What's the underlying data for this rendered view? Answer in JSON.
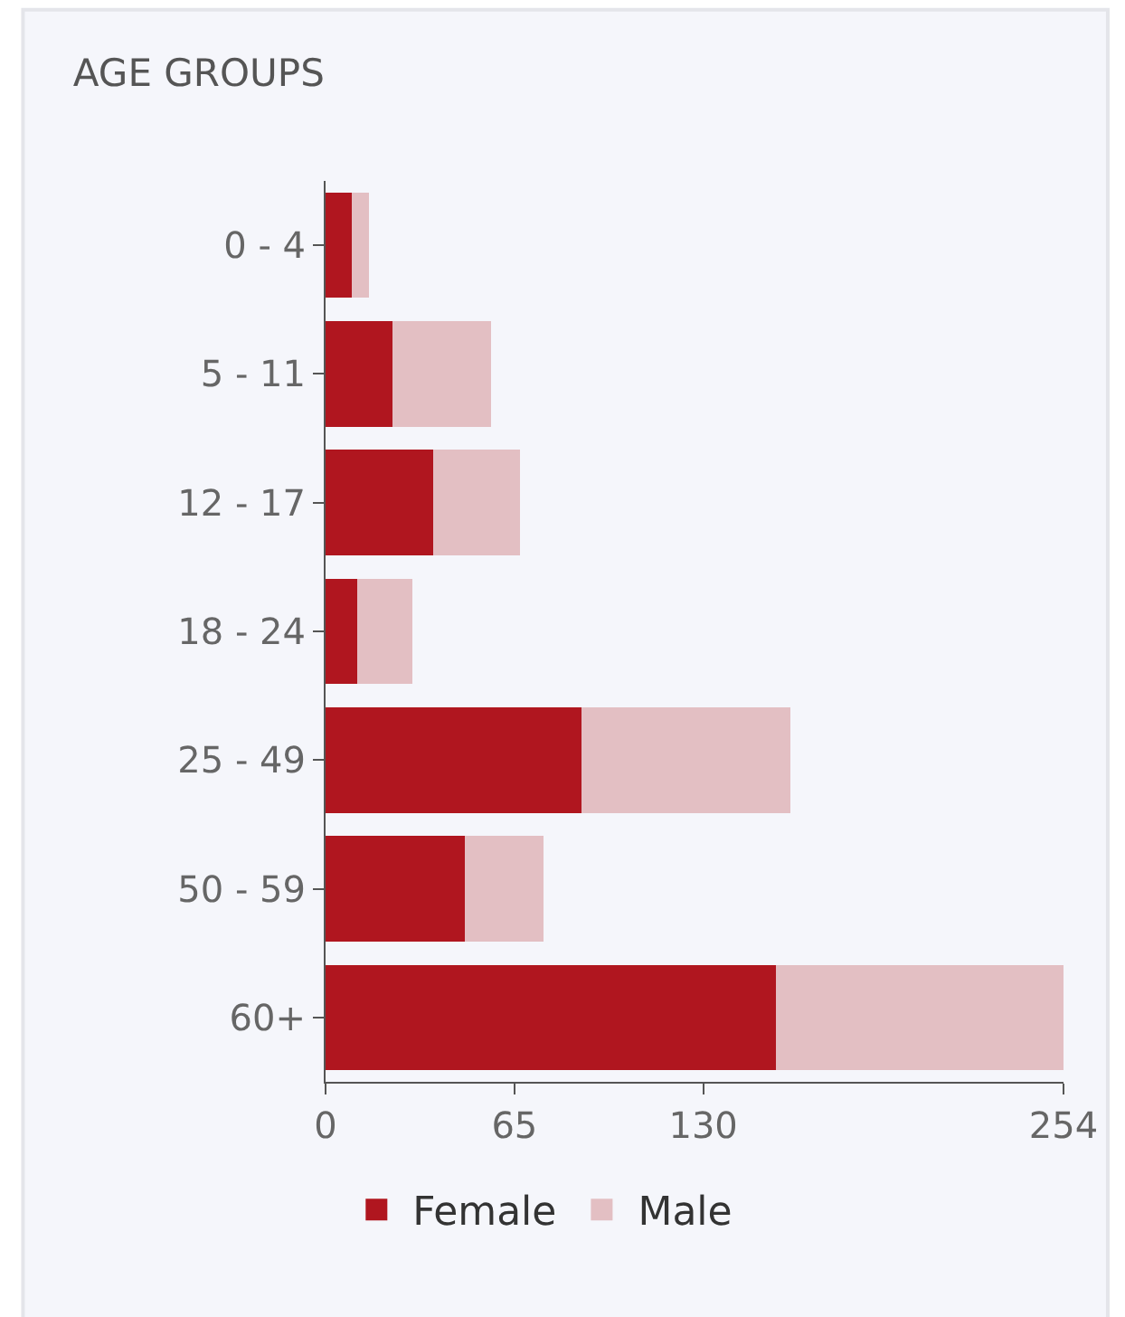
{
  "chart_data": {
    "type": "bar",
    "orientation": "horizontal",
    "stacked": true,
    "title": "AGE GROUPS",
    "categories": [
      "0 - 4",
      "5 - 11",
      "12 - 17",
      "18 - 24",
      "25 - 49",
      "50 - 59",
      "60+"
    ],
    "series": [
      {
        "name": "Female",
        "color": "#b0161f",
        "values": [
          9,
          23,
          37,
          11,
          88,
          48,
          155
        ]
      },
      {
        "name": "Male",
        "color": "#e3bfc3",
        "values": [
          6,
          34,
          30,
          19,
          72,
          27,
          99
        ]
      }
    ],
    "xlim": [
      0,
      254
    ],
    "xticks": [
      0,
      65,
      130,
      254
    ],
    "grid": false,
    "legend": "bottom"
  }
}
